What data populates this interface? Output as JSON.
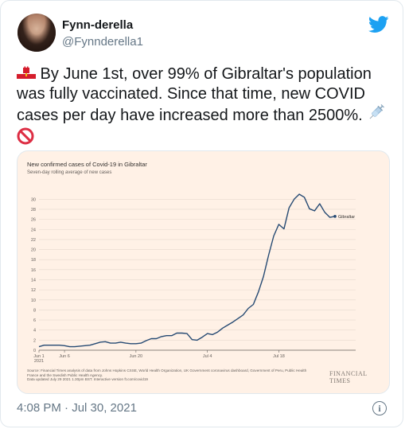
{
  "tweet": {
    "author_name": "Fynn-derella",
    "author_handle": "@Fynnderella1",
    "text_line1": " By June 1st, over 99% of Gibraltar's population",
    "text_line2": "was fully vaccinated. Since that time, new COVID",
    "text_line3": "cases per day have increased more than 2500%. ",
    "timestamp": "4:08 PM · Jul 30, 2021",
    "icons": {
      "flag": "gibraltar-flag-icon",
      "syringe": "syringe-icon",
      "prohibited": "prohibited-icon",
      "logo": "twitter-bird-icon",
      "info": "info-icon"
    },
    "info_glyph": "i"
  },
  "colors": {
    "link_blue": "#1da1f2",
    "chart_bg": "#fff1e6",
    "line": "#264a73",
    "grid": "#e6d9ce"
  },
  "chart": {
    "source_text": "Source: Financial Times analysis of data from Johns Hopkins CSSE, World Health Organization, UK Government coronavirus dashboard, Government of Peru, Public Health France and the Swedish Public Health Agency.",
    "updated_text": "Data updated July 29 2021 1.30pm BST. Interactive version ft.com/covid19",
    "brand": "FINANCIAL TIMES"
  },
  "chart_data": {
    "type": "line",
    "title": "New confirmed cases of Covid-19 in Gibraltar",
    "subtitle": "Seven-day rolling average of new cases",
    "x_tick_labels": [
      "Jun 1\n2021",
      "Jun 6",
      "Jun 20",
      "Jul 4",
      "Jul 18"
    ],
    "x_tick_days": [
      0,
      5,
      19,
      33,
      47
    ],
    "y_ticks": [
      0,
      2,
      4,
      6,
      8,
      10,
      12,
      14,
      16,
      18,
      20,
      22,
      24,
      26,
      28,
      30
    ],
    "ylim": [
      0,
      31
    ],
    "xlim": [
      0,
      58
    ],
    "series": [
      {
        "name": "Gibraltar",
        "x": [
          0,
          1,
          2,
          3,
          4,
          5,
          6,
          7,
          8,
          9,
          10,
          11,
          12,
          13,
          14,
          15,
          16,
          17,
          18,
          19,
          20,
          21,
          22,
          23,
          24,
          25,
          26,
          27,
          28,
          29,
          30,
          31,
          32,
          33,
          34,
          35,
          36,
          37,
          38,
          39,
          40,
          41,
          42,
          43,
          44,
          45,
          46,
          47,
          48,
          49,
          50,
          51,
          52,
          53,
          54,
          55,
          56,
          57,
          58
        ],
        "values": [
          0.7,
          1.0,
          1.0,
          1.0,
          1.0,
          0.9,
          0.7,
          0.7,
          0.8,
          0.9,
          1.0,
          1.3,
          1.6,
          1.7,
          1.4,
          1.4,
          1.6,
          1.4,
          1.3,
          1.3,
          1.4,
          1.9,
          2.3,
          2.3,
          2.7,
          2.9,
          2.9,
          3.4,
          3.4,
          3.3,
          2.1,
          2.0,
          2.6,
          3.3,
          3.1,
          3.6,
          4.4,
          5.0,
          5.6,
          6.3,
          7.0,
          8.3,
          9.1,
          11.6,
          14.7,
          18.9,
          22.7,
          25.0,
          24.1,
          28.3,
          30.0,
          31.0,
          30.4,
          28.1,
          27.7,
          29.1,
          27.4,
          26.4,
          26.6
        ]
      }
    ]
  }
}
